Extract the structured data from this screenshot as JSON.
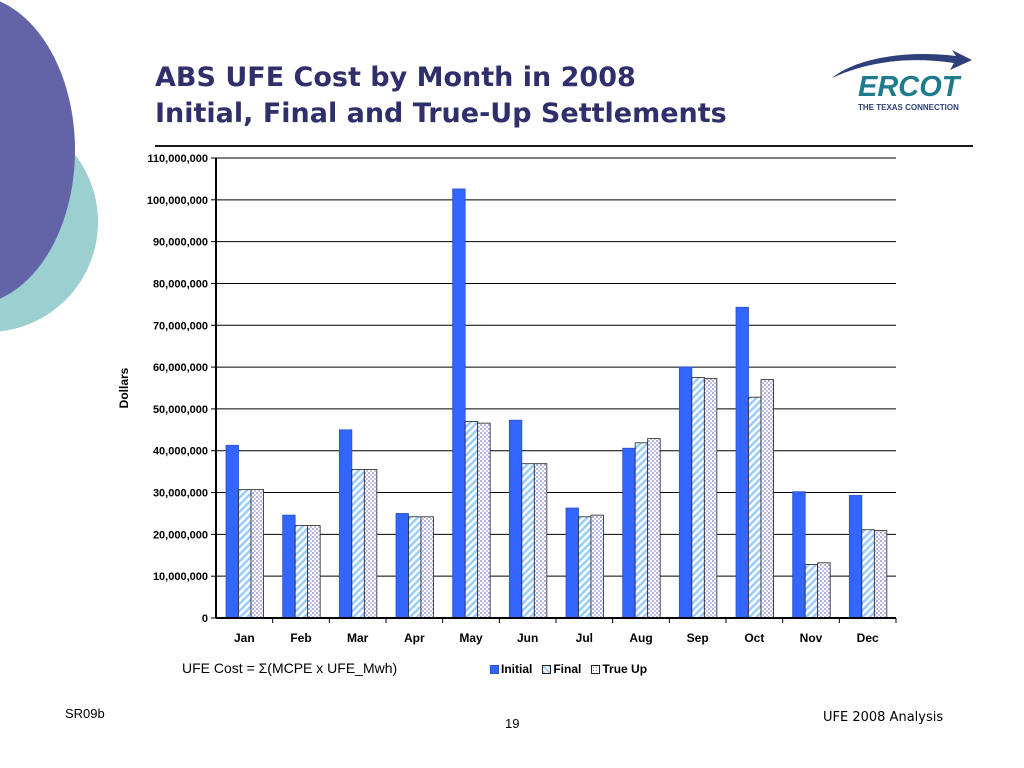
{
  "slide": {
    "title_line1": "ABS UFE Cost by Month in 2008",
    "title_line2": "Initial, Final and True-Up Settlements",
    "formula": "UFE Cost = Σ(MCPE x UFE_Mwh)",
    "footer_left": "SR09b",
    "page_number": "19",
    "footer_right": "UFE 2008 Analysis"
  },
  "logo": {
    "name": "ERCOT",
    "tagline": "THE TEXAS CONNECTION"
  },
  "colors": {
    "title": "#2e2f6b",
    "deco_purple": "#6264a7",
    "deco_teal": "#9bcfd0",
    "initial": "#3366ff",
    "final_stripe": "#99ccff",
    "trueup_dot": "#7777cc",
    "logo_teal": "#1f7a8c",
    "logo_swoosh": "#2e3f7a"
  },
  "chart_data": {
    "type": "bar",
    "categories": [
      "Jan",
      "Feb",
      "Mar",
      "Apr",
      "May",
      "Jun",
      "Jul",
      "Aug",
      "Sep",
      "Oct",
      "Nov",
      "Dec"
    ],
    "series": [
      {
        "name": "Initial",
        "values": [
          41300000,
          24600000,
          45000000,
          25000000,
          102600000,
          47300000,
          26300000,
          40600000,
          60000000,
          74300000,
          30200000,
          29300000
        ]
      },
      {
        "name": "Final",
        "values": [
          30700000,
          22100000,
          35500000,
          24200000,
          47000000,
          36900000,
          24200000,
          41900000,
          57500000,
          52800000,
          12800000,
          21100000
        ]
      },
      {
        "name": "True Up",
        "values": [
          30700000,
          22100000,
          35500000,
          24200000,
          46600000,
          36900000,
          24600000,
          42900000,
          57300000,
          57000000,
          13200000,
          20900000
        ]
      }
    ],
    "ylabel": "Dollars",
    "xlabel": "",
    "ylim": [
      0,
      110000000
    ],
    "y_ticks": [
      0,
      10000000,
      20000000,
      30000000,
      40000000,
      50000000,
      60000000,
      70000000,
      80000000,
      90000000,
      100000000,
      110000000
    ],
    "y_tick_labels": [
      "0",
      "10,000,000",
      "20,000,000",
      "30,000,000",
      "40,000,000",
      "50,000,000",
      "60,000,000",
      "70,000,000",
      "80,000,000",
      "90,000,000",
      "100,000,000",
      "110,000,000"
    ],
    "grid": true,
    "legend_position": "bottom"
  }
}
